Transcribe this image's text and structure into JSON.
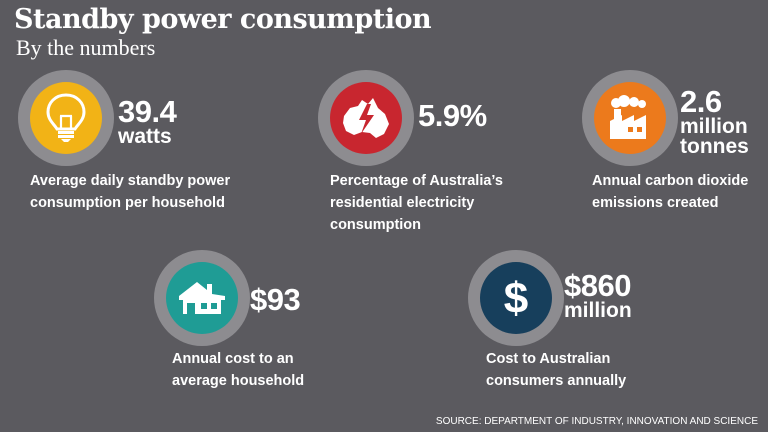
{
  "header": {
    "title": "Standby power consumption",
    "subtitle": "By the numbers"
  },
  "stats": [
    {
      "icon": "lightbulb-icon",
      "icon_color": "#f2b316",
      "value": "39.4",
      "unit": "watts",
      "desc_line1": "Average daily standby power",
      "desc_line2": "consumption per household"
    },
    {
      "icon": "australia-lightning-icon",
      "icon_color": "#c8262f",
      "value": "5.9%",
      "desc_line1": "Percentage of Australia’s",
      "desc_line2": "residential electricity",
      "desc_line3": "consumption"
    },
    {
      "icon": "factory-icon",
      "icon_color": "#ec7a1c",
      "value": "2.6",
      "unit_line1": "million",
      "unit_line2": "tonnes",
      "desc_line1": "Annual carbon dioxide",
      "desc_line2": "emissions created"
    },
    {
      "icon": "house-icon",
      "icon_color": "#1f9c95",
      "value": "$93",
      "desc_line1": "Annual cost to an",
      "desc_line2": "average household"
    },
    {
      "icon": "dollar-icon",
      "icon_color": "#173f5c",
      "value": "$860",
      "unit": "million",
      "desc_line1": "Cost to Australian",
      "desc_line2": "consumers annually"
    }
  ],
  "footer": {
    "source": "SOURCE: DEPARTMENT OF INDUSTRY, INNOVATION AND SCIENCE"
  }
}
